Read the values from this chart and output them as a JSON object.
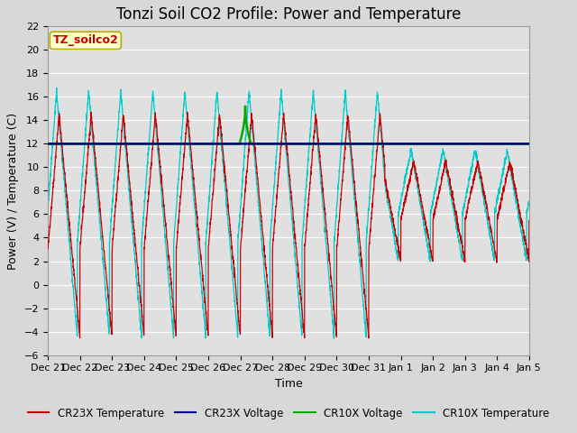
{
  "title": "Tonzi Soil CO2 Profile: Power and Temperature",
  "ylabel": "Power (V) / Temperature (C)",
  "xlabel": "Time",
  "ylim": [
    -6,
    22
  ],
  "yticks": [
    -6,
    -4,
    -2,
    0,
    2,
    4,
    6,
    8,
    10,
    12,
    14,
    16,
    18,
    20,
    22
  ],
  "legend_labels": [
    "CR23X Temperature",
    "CR23X Voltage",
    "CR10X Voltage",
    "CR10X Temperature"
  ],
  "legend_colors": [
    "#cc0000",
    "#0000cc",
    "#00bb00",
    "#00cccc"
  ],
  "label_box_text": "TZ_soilco2",
  "label_box_facecolor": "#ffffcc",
  "label_box_edgecolor": "#bbaa00",
  "label_box_textcolor": "#cc0000",
  "voltage_level": 12.0,
  "fig_facecolor": "#d8d8d8",
  "plot_bg_color": "#e0e0e0",
  "grid_color": "#ffffff",
  "title_fontsize": 12,
  "axis_fontsize": 9,
  "tick_fontsize": 8
}
